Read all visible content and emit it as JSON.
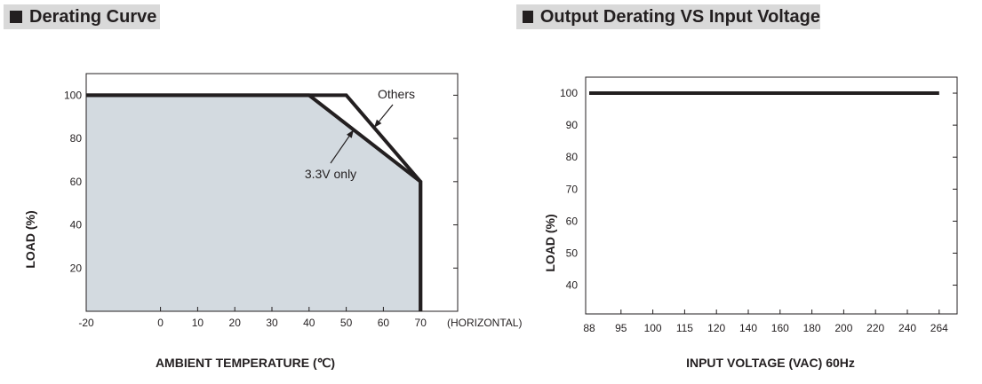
{
  "headers": {
    "left": "Derating Curve",
    "right": "Output Derating VS Input Voltage"
  },
  "chart_data": [
    {
      "type": "line",
      "title": "Derating Curve",
      "xlabel": "AMBIENT TEMPERATURE (℃)",
      "ylabel": "LOAD (%)",
      "x_extra_label": "(HORIZONTAL)",
      "xlim": [
        -20,
        80
      ],
      "ylim": [
        0,
        110
      ],
      "x_ticks": [
        "-20",
        "0",
        "10",
        "20",
        "30",
        "40",
        "50",
        "60",
        "70"
      ],
      "x_tick_values": [
        -20,
        0,
        10,
        20,
        30,
        40,
        50,
        60,
        70
      ],
      "y_ticks": [
        "20",
        "40",
        "60",
        "80",
        "100"
      ],
      "y_tick_values": [
        20,
        40,
        60,
        80,
        100
      ],
      "series": [
        {
          "name": "Others",
          "x": [
            -20,
            50,
            70,
            70
          ],
          "y": [
            100,
            100,
            60,
            0
          ]
        },
        {
          "name": "3.3V only",
          "x": [
            -20,
            40,
            70,
            70
          ],
          "y": [
            100,
            100,
            60,
            0
          ],
          "filled": true
        }
      ],
      "annotations": [
        {
          "text": "Others",
          "series": "Others"
        },
        {
          "text": "3.3V only",
          "series": "3.3V only"
        }
      ],
      "colors": {
        "fill": "#d3dae0",
        "line": "#231f20"
      }
    },
    {
      "type": "line",
      "title": "Output Derating VS Input Voltage",
      "xlabel": "INPUT VOLTAGE (VAC) 60Hz",
      "ylabel": "LOAD (%)",
      "x_ticks": [
        "88",
        "95",
        "100",
        "115",
        "120",
        "140",
        "160",
        "180",
        "200",
        "220",
        "240",
        "264"
      ],
      "y_ticks": [
        "40",
        "50",
        "60",
        "70",
        "80",
        "90",
        "100"
      ],
      "y_tick_values": [
        40,
        50,
        60,
        70,
        80,
        90,
        100
      ],
      "ylim": [
        31,
        105
      ],
      "series": [
        {
          "name": "Load",
          "x": [
            "88",
            "264"
          ],
          "y": [
            100,
            100
          ]
        }
      ],
      "colors": {
        "line": "#231f20"
      }
    }
  ]
}
